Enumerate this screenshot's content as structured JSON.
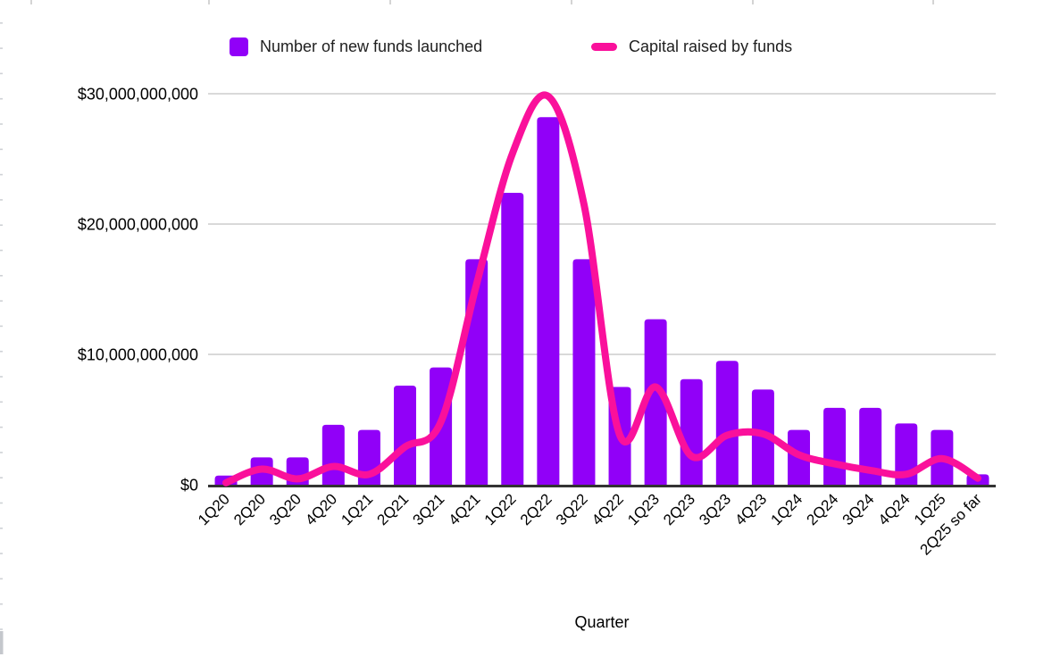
{
  "colors": {
    "bar": "#9100F8",
    "line": "#FA109B",
    "gridline": "#D9D9D9",
    "axis_line": "#333333",
    "text": "#000000",
    "legend_text": "#1F1F1F"
  },
  "x_axis": {
    "title": "Quarter"
  },
  "chart_data": {
    "type": "bar+line combo",
    "grid": "horizontal",
    "legend_position": "top",
    "xlabel": "Quarter",
    "ylabel": "",
    "ylim_billions": [
      0,
      30
    ],
    "y_axis": {
      "ticks": [
        {
          "label": "$0",
          "value_billions": 0
        },
        {
          "label": "$10,000,000,000",
          "value_billions": 10
        },
        {
          "label": "$20,000,000,000",
          "value_billions": 20
        },
        {
          "label": "$30,000,000,000",
          "value_billions": 30
        }
      ]
    },
    "categories": [
      "1Q20",
      "2Q20",
      "3Q20",
      "4Q20",
      "1Q21",
      "2Q21",
      "3Q21",
      "4Q21",
      "1Q22",
      "2Q22",
      "3Q22",
      "4Q22",
      "1Q23",
      "2Q23",
      "3Q23",
      "4Q23",
      "1Q24",
      "2Q24",
      "3Q24",
      "4Q24",
      "1Q25",
      "2Q25 so far"
    ],
    "series": [
      {
        "name": "Number of new funds launched",
        "type": "bar",
        "color": "#9100F8",
        "values_billions": [
          0.7,
          2.1,
          2.1,
          4.6,
          4.2,
          7.6,
          9.0,
          17.3,
          22.4,
          28.2,
          17.3,
          7.5,
          12.7,
          8.1,
          9.5,
          7.3,
          4.2,
          5.9,
          5.9,
          4.7,
          4.2,
          0.8
        ]
      },
      {
        "name": "Capital raised by funds",
        "type": "line",
        "color": "#FA109B",
        "values_billions": [
          0.15,
          1.2,
          0.45,
          1.4,
          0.8,
          2.9,
          4.8,
          15.4,
          25.4,
          29.8,
          21.5,
          3.8,
          7.5,
          2.2,
          3.8,
          3.9,
          2.3,
          1.6,
          1.1,
          0.8,
          2.0,
          0.5
        ]
      }
    ]
  }
}
